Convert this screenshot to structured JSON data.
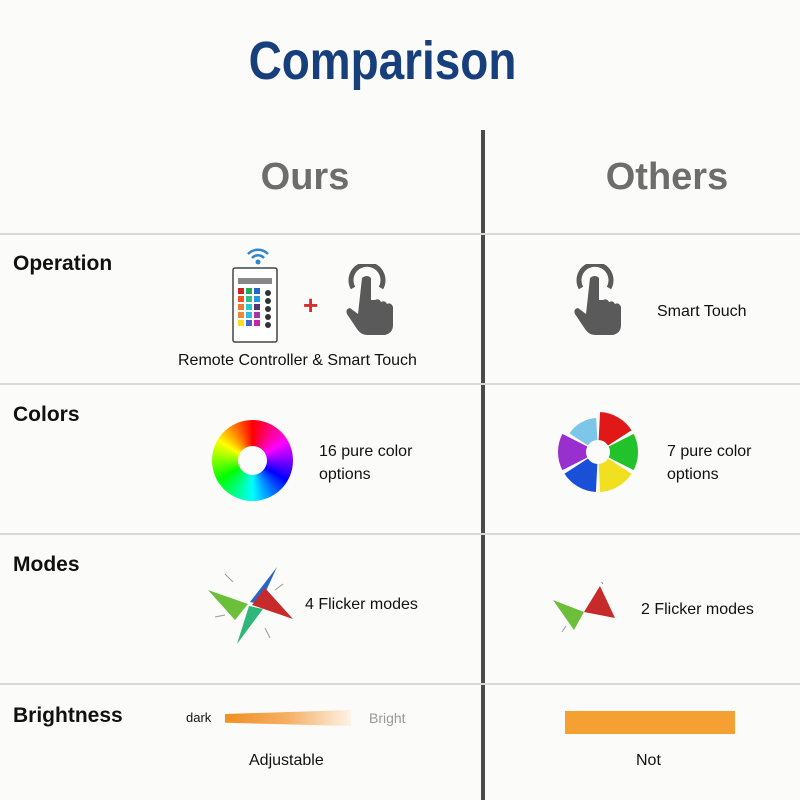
{
  "title": "Comparison",
  "columns": {
    "ours": "Ours",
    "others": "Others"
  },
  "rows": [
    {
      "label": "Operation",
      "ours": "Remote Controller & Smart Touch",
      "ours_plus": "+",
      "others": "Smart Touch"
    },
    {
      "label": "Colors",
      "ours_line1": "16 pure color",
      "ours_line2": "options",
      "others_line1": "7 pure color",
      "others_line2": "options"
    },
    {
      "label": "Modes",
      "ours": "4 Flicker modes",
      "others": "2 Flicker modes"
    },
    {
      "label": "Brightness",
      "ours_dark": "dark",
      "ours_bright": "Bright",
      "ours": "Adjustable",
      "others": "Not"
    }
  ],
  "colors": {
    "title": "#173f7c",
    "bar": "#f5a033",
    "plus": "#d33030",
    "icon": "#5a5a5a"
  }
}
